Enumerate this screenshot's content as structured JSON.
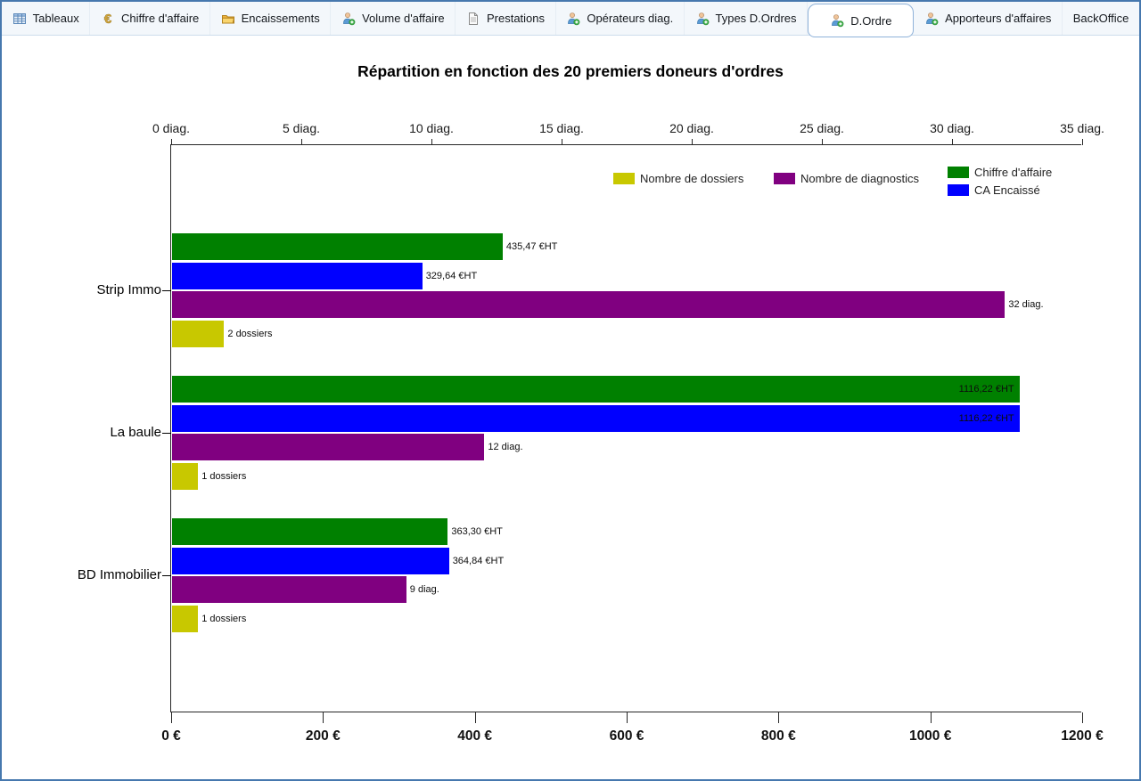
{
  "tabs": [
    {
      "id": "tableaux",
      "label": "Tableaux",
      "icon": "table-icon",
      "selected": false
    },
    {
      "id": "chiffre-daffaire",
      "label": "Chiffre d'affaire",
      "icon": "euro-icon",
      "selected": false
    },
    {
      "id": "encaissements",
      "label": "Encaissements",
      "icon": "folder-icon",
      "selected": false
    },
    {
      "id": "volume-daffaire",
      "label": "Volume d'affaire",
      "icon": "person-add-icon",
      "selected": false
    },
    {
      "id": "prestations",
      "label": "Prestations",
      "icon": "document-icon",
      "selected": false
    },
    {
      "id": "operateurs-diag",
      "label": "Opérateurs diag.",
      "icon": "person-add-icon",
      "selected": false
    },
    {
      "id": "types-dordres",
      "label": "Types D.Ordres",
      "icon": "person-add-icon",
      "selected": false
    },
    {
      "id": "dordre",
      "label": "D.Ordre",
      "icon": "person-add-icon",
      "selected": true
    },
    {
      "id": "apporteurs-daffaires",
      "label": "Apporteurs d'affaires",
      "icon": "person-add-icon",
      "selected": false
    },
    {
      "id": "backoffice",
      "label": "BackOffice",
      "icon": null,
      "selected": false
    }
  ],
  "chart_data": {
    "type": "bar",
    "orientation": "horizontal",
    "title": "Répartition en fonction des 20 premiers doneurs d'ordres",
    "categories": [
      "Strip Immo",
      "La baule",
      "BD Immobilier"
    ],
    "series": [
      {
        "name": "Chiffre d'affaire",
        "color": "#008000",
        "axis": "euro",
        "values": [
          435.47,
          1116.22,
          363.3
        ],
        "labels": [
          "435,47 €HT",
          "1116,22 €HT",
          "363,30 €HT"
        ]
      },
      {
        "name": "CA Encaissé",
        "color": "#0000ff",
        "axis": "euro",
        "values": [
          329.64,
          1116.22,
          364.84
        ],
        "labels": [
          "329,64 €HT",
          "1116,22 €HT",
          "364,84 €HT"
        ]
      },
      {
        "name": "Nombre de diagnostics",
        "color": "#800080",
        "axis": "diag",
        "values": [
          32,
          12,
          9
        ],
        "labels": [
          "32 diag.",
          "12 diag.",
          "9 diag."
        ]
      },
      {
        "name": "Nombre de dossiers",
        "color": "#c8c800",
        "axis": "diag",
        "values": [
          2,
          1,
          1
        ],
        "labels": [
          "2 dossiers",
          "1 dossiers",
          "1 dossiers"
        ]
      }
    ],
    "axes": {
      "top": {
        "unit": "diag.",
        "min": 0,
        "max": 35,
        "ticks": [
          "0 diag.",
          "5 diag.",
          "10 diag.",
          "15 diag.",
          "20 diag.",
          "25 diag.",
          "30 diag.",
          "35 diag."
        ]
      },
      "bottom": {
        "unit": "€",
        "min": 0,
        "max": 1200,
        "ticks": [
          "0 €",
          "200 €",
          "400 €",
          "600 €",
          "800 €",
          "1000 €",
          "1200 €"
        ]
      }
    },
    "legend": [
      {
        "label": "Nombre de dossiers",
        "color": "#c8c800"
      },
      {
        "label": "Nombre de diagnostics",
        "color": "#800080"
      },
      {
        "label": "Chiffre d'affaire",
        "color": "#008000"
      },
      {
        "label": "CA Encaissé",
        "color": "#0000ff"
      }
    ],
    "grid": false,
    "legend_position": "top-right-inside"
  },
  "colors": {
    "bar_green": "#008000",
    "bar_blue": "#0000ff",
    "bar_purple": "#800080",
    "bar_yellow": "#c8c800",
    "window_border": "#4678ae"
  }
}
